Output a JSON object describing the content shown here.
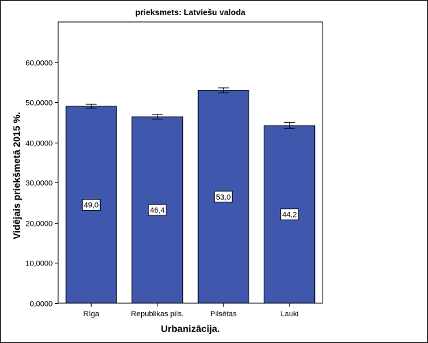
{
  "chart_data": {
    "type": "bar",
    "title": "prieksmets: Latviešu valoda",
    "xlabel": "Urbanizācija.",
    "ylabel": "Vidējais priekšmetā 2015 %.",
    "categories": [
      "Rīga",
      "Republikas pils.",
      "Pilsētas",
      "Lauki"
    ],
    "values": [
      49.0,
      46.4,
      53.0,
      44.2
    ],
    "value_labels": [
      "49,0",
      "46,4",
      "53,0",
      "44,2"
    ],
    "error_low": [
      48.5,
      45.8,
      52.4,
      43.5
    ],
    "error_high": [
      49.5,
      47.0,
      53.6,
      45.0
    ],
    "ylim": [
      0,
      70
    ],
    "yticks": [
      0,
      10,
      20,
      30,
      40,
      50,
      60
    ],
    "ytick_labels": [
      "0,0000",
      "10,0000",
      "20,0000",
      "30,0000",
      "40,0000",
      "50,0000",
      "60,0000"
    ],
    "bar_color": "#3f58ae",
    "grid": false
  }
}
